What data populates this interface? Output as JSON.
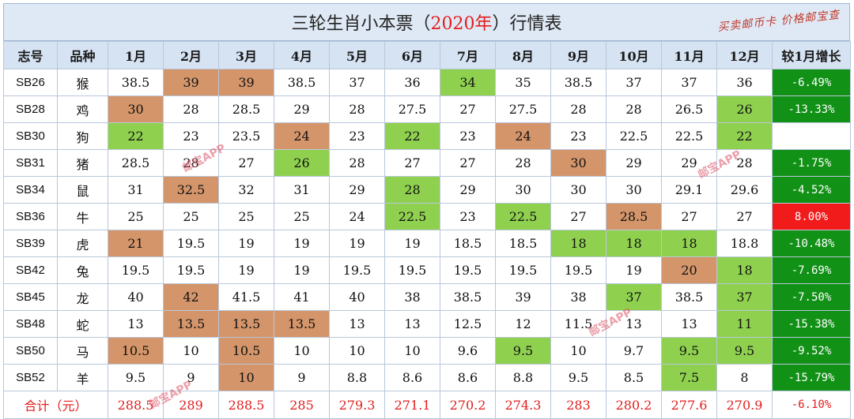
{
  "title": {
    "before": "三轮生肖小本票（",
    "year": "2020年",
    "after": "）行情表"
  },
  "tagline": "买卖邮币卡 价格邮宝查",
  "headers": [
    "志号",
    "品种",
    "1月",
    "2月",
    "3月",
    "4月",
    "5月",
    "6月",
    "7月",
    "8月",
    "9月",
    "10月",
    "11月",
    "12月",
    "较1月增长"
  ],
  "rows": [
    {
      "code": "SB26",
      "animal": "猴",
      "values": [
        "38.5",
        "39",
        "39",
        "38.5",
        "37",
        "36",
        "34",
        "35",
        "38.5",
        "37",
        "37",
        "36"
      ],
      "marks": [
        "",
        "hi",
        "hi",
        "",
        "",
        "",
        "lo",
        "",
        "",
        "",
        "",
        ""
      ],
      "growth": "-6.49%",
      "growth_type": "down"
    },
    {
      "code": "SB28",
      "animal": "鸡",
      "values": [
        "30",
        "28",
        "28.5",
        "29",
        "28",
        "27.5",
        "27",
        "27.5",
        "28",
        "28",
        "26.5",
        "26"
      ],
      "marks": [
        "hi",
        "",
        "",
        "",
        "",
        "",
        "",
        "",
        "",
        "",
        "",
        "lo"
      ],
      "growth": "-13.33%",
      "growth_type": "down"
    },
    {
      "code": "SB30",
      "animal": "狗",
      "values": [
        "22",
        "23",
        "23.5",
        "24",
        "23",
        "22",
        "23",
        "24",
        "23",
        "22.5",
        "22.5",
        "22"
      ],
      "marks": [
        "lo",
        "",
        "",
        "hi",
        "",
        "lo",
        "",
        "hi",
        "",
        "",
        "",
        "lo"
      ],
      "growth": "",
      "growth_type": "none"
    },
    {
      "code": "SB31",
      "animal": "猪",
      "values": [
        "28.5",
        "28",
        "27",
        "26",
        "28",
        "27",
        "27",
        "28",
        "30",
        "29",
        "29",
        "28"
      ],
      "marks": [
        "",
        "",
        "",
        "lo",
        "",
        "",
        "",
        "",
        "hi",
        "",
        "",
        ""
      ],
      "growth": "-1.75%",
      "growth_type": "down"
    },
    {
      "code": "SB34",
      "animal": "鼠",
      "values": [
        "31",
        "32.5",
        "32",
        "31",
        "29",
        "28",
        "29",
        "30",
        "30",
        "30",
        "29.1",
        "29.6"
      ],
      "marks": [
        "",
        "hi",
        "",
        "",
        "",
        "lo",
        "",
        "",
        "",
        "",
        "",
        ""
      ],
      "growth": "-4.52%",
      "growth_type": "down"
    },
    {
      "code": "SB36",
      "animal": "牛",
      "values": [
        "25",
        "25",
        "25",
        "25",
        "24",
        "22.5",
        "23",
        "22.5",
        "27",
        "28.5",
        "27",
        "27"
      ],
      "marks": [
        "",
        "",
        "",
        "",
        "",
        "lo",
        "",
        "lo",
        "",
        "hi",
        "",
        ""
      ],
      "growth": "8.00%",
      "growth_type": "up"
    },
    {
      "code": "SB39",
      "animal": "虎",
      "values": [
        "21",
        "19.5",
        "19",
        "19",
        "19",
        "19",
        "18.5",
        "18.5",
        "18",
        "18",
        "18",
        "18.8"
      ],
      "marks": [
        "hi",
        "",
        "",
        "",
        "",
        "",
        "",
        "",
        "lo",
        "lo",
        "lo",
        ""
      ],
      "growth": "-10.48%",
      "growth_type": "down"
    },
    {
      "code": "SB42",
      "animal": "兔",
      "values": [
        "19.5",
        "19.5",
        "19",
        "19",
        "19.5",
        "19.5",
        "19.5",
        "19.5",
        "19.5",
        "19",
        "20",
        "18"
      ],
      "marks": [
        "",
        "",
        "",
        "",
        "",
        "",
        "",
        "",
        "",
        "",
        "hi",
        "lo"
      ],
      "growth": "-7.69%",
      "growth_type": "down"
    },
    {
      "code": "SB45",
      "animal": "龙",
      "values": [
        "40",
        "42",
        "41.5",
        "41",
        "40",
        "38",
        "38.5",
        "39",
        "38",
        "37",
        "38.5",
        "37"
      ],
      "marks": [
        "",
        "hi",
        "",
        "",
        "",
        "",
        "",
        "",
        "",
        "lo",
        "",
        "lo"
      ],
      "growth": "-7.50%",
      "growth_type": "down"
    },
    {
      "code": "SB48",
      "animal": "蛇",
      "values": [
        "13",
        "13.5",
        "13.5",
        "13.5",
        "13",
        "13",
        "12.5",
        "12",
        "11.5",
        "13",
        "13",
        "11"
      ],
      "marks": [
        "",
        "hi",
        "hi",
        "hi",
        "",
        "",
        "",
        "",
        "",
        "",
        "",
        "lo"
      ],
      "growth": "-15.38%",
      "growth_type": "down"
    },
    {
      "code": "SB50",
      "animal": "马",
      "values": [
        "10.5",
        "10",
        "10.5",
        "10",
        "10",
        "10",
        "9.6",
        "9.5",
        "10",
        "9.7",
        "9.5",
        "9.5"
      ],
      "marks": [
        "hi",
        "",
        "hi",
        "",
        "",
        "",
        "",
        "lo",
        "",
        "",
        "lo",
        "lo"
      ],
      "growth": "-9.52%",
      "growth_type": "down"
    },
    {
      "code": "SB52",
      "animal": "羊",
      "values": [
        "9.5",
        "9",
        "10",
        "9",
        "8.8",
        "8.6",
        "8.6",
        "8.8",
        "9.5",
        "8.5",
        "7.5",
        "8"
      ],
      "marks": [
        "",
        "",
        "hi",
        "",
        "",
        "",
        "",
        "",
        "",
        "",
        "lo",
        ""
      ],
      "growth": "-15.79%",
      "growth_type": "down"
    }
  ],
  "total": {
    "label": "合计（元）",
    "values": [
      "288.5",
      "289",
      "288.5",
      "285",
      "279.3",
      "271.1",
      "270.2",
      "274.3",
      "283",
      "280.2",
      "277.6",
      "270.9"
    ],
    "growth": "-6.10%"
  },
  "watermark": "邮宝APP",
  "colors": {
    "high": "#d4956a",
    "low": "#8fd14f",
    "growth_down": "#129117",
    "growth_up": "#f21b1b",
    "total_text": "#e21d1d"
  }
}
